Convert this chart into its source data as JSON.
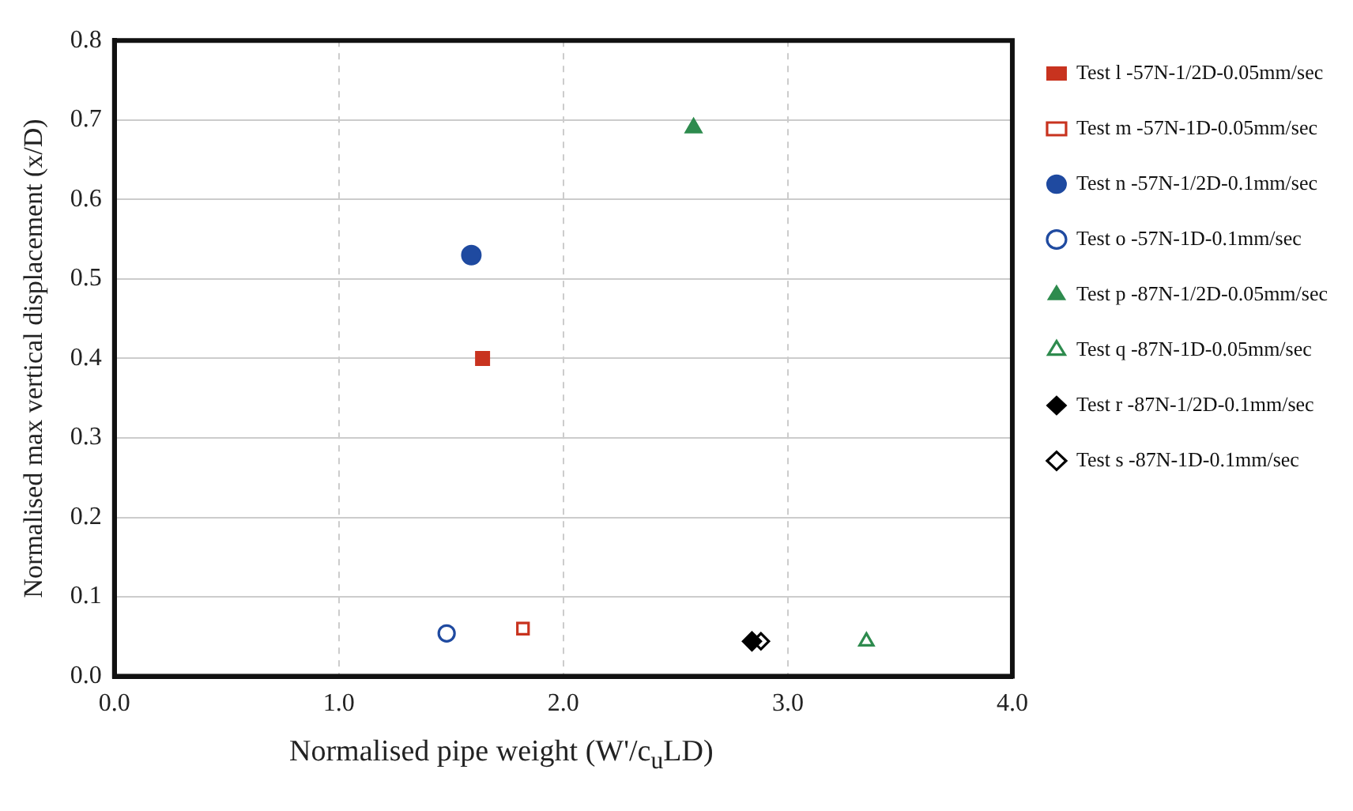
{
  "chart_data": {
    "type": "scatter",
    "xlabel": "Normalised pipe weight  (W'/c$_{u}$LD)",
    "ylabel": "Normalised max vertical displacement (x/D)",
    "xlim": [
      0,
      4
    ],
    "xticks": [
      {
        "value": 0,
        "label": "0.0"
      },
      {
        "value": 1,
        "label": "1.0"
      },
      {
        "value": 2,
        "label": "2.0"
      },
      {
        "value": 3,
        "label": "3.0"
      },
      {
        "value": 4,
        "label": "4.0"
      }
    ],
    "ylim": [
      0,
      0.8
    ],
    "yticks": [
      {
        "value": 0,
        "label": "0.0"
      },
      {
        "value": 0.1,
        "label": "0.1"
      },
      {
        "value": 0.2,
        "label": "0.2"
      },
      {
        "value": 0.3,
        "label": "0.3"
      },
      {
        "value": 0.4,
        "label": "0.4"
      },
      {
        "value": 0.5,
        "label": "0.5"
      },
      {
        "value": 0.6,
        "label": "0.6"
      },
      {
        "value": 0.7,
        "label": "0.7"
      },
      {
        "value": 0.8,
        "label": "0.8"
      }
    ],
    "grid": true,
    "legend": "right",
    "series": [
      {
        "name": "Test l -57N-1/2D-0.05mm/sec",
        "color": "#c8331f",
        "marker": "square",
        "x": [
          1.64
        ],
        "values": [
          0.4
        ]
      },
      {
        "name": "Test m -57N-1D-0.05mm/sec",
        "color": "#c8331f",
        "marker": "square-open",
        "x": [
          1.82
        ],
        "values": [
          0.06
        ]
      },
      {
        "name": "Test n -57N-1/2D-0.1mm/sec",
        "color": "#1f4aa0",
        "marker": "circle",
        "x": [
          1.59
        ],
        "values": [
          0.53
        ]
      },
      {
        "name": "Test o -57N-1D-0.1mm/sec",
        "color": "#1f4aa0",
        "marker": "circle-open",
        "x": [
          1.48
        ],
        "values": [
          0.054
        ]
      },
      {
        "name": "Test p -87N-1/2D-0.05mm/sec",
        "color": "#2e8b4e",
        "marker": "triangle",
        "x": [
          2.58
        ],
        "values": [
          0.69
        ]
      },
      {
        "name": "Test q -87N-1D-0.05mm/sec",
        "color": "#2e8b4e",
        "marker": "triangle-open",
        "x": [
          3.35
        ],
        "values": [
          0.044
        ]
      },
      {
        "name": "Test r -87N-1/2D-0.1mm/sec",
        "color": "#000000",
        "marker": "diamond",
        "x": [
          2.84
        ],
        "values": [
          0.044
        ]
      },
      {
        "name": "Test s -87N-1D-0.1mm/sec",
        "color": "#000000",
        "marker": "diamond-open",
        "x": [
          2.88
        ],
        "values": [
          0.044
        ]
      }
    ]
  }
}
